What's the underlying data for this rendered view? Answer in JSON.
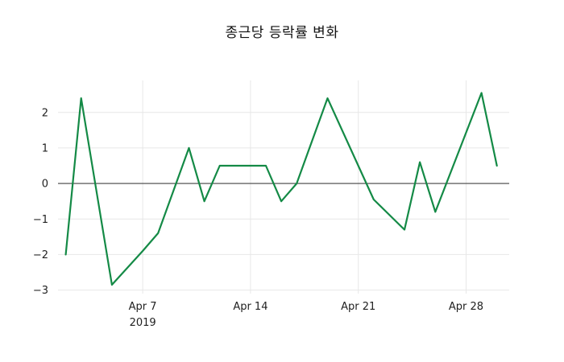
{
  "chart_data": {
    "type": "line",
    "title": "종근당 등락률 변화",
    "xlabel": "",
    "ylabel": "",
    "legend_position": "none",
    "grid": true,
    "zero_line": true,
    "colors": {
      "line": "#148a46",
      "grid": "#e7e7e7",
      "zero_line": "#444444",
      "tick_label": "#212121",
      "title": "#111111",
      "background": "#ffffff"
    },
    "xlim": [
      -0.5,
      28.8
    ],
    "ylim": [
      -3.1,
      2.9
    ],
    "y_ticks": [
      2,
      1,
      0,
      -1,
      -2,
      -3
    ],
    "x_ticks": [
      {
        "day": 5,
        "label": "Apr 7",
        "sublabel": "2019"
      },
      {
        "day": 12,
        "label": "Apr 14",
        "sublabel": ""
      },
      {
        "day": 19,
        "label": "Apr 21",
        "sublabel": ""
      },
      {
        "day": 26,
        "label": "Apr 28",
        "sublabel": ""
      }
    ],
    "series": [
      {
        "name": "등락률",
        "color": "#148a46",
        "points": [
          {
            "date": "Apr 2",
            "day": 0,
            "value": -2.0
          },
          {
            "date": "Apr 3",
            "day": 1,
            "value": 2.4
          },
          {
            "date": "Apr 5",
            "day": 3,
            "value": -2.85
          },
          {
            "date": "Apr 7",
            "day": 5,
            "value": -1.9
          },
          {
            "date": "Apr 8",
            "day": 6,
            "value": -1.4
          },
          {
            "date": "Apr 10",
            "day": 8,
            "value": 1.0
          },
          {
            "date": "Apr 11",
            "day": 9,
            "value": -0.5
          },
          {
            "date": "Apr 12",
            "day": 10,
            "value": 0.5
          },
          {
            "date": "Apr 15",
            "day": 13,
            "value": 0.5
          },
          {
            "date": "Apr 16",
            "day": 14,
            "value": -0.5
          },
          {
            "date": "Apr 17",
            "day": 15,
            "value": 0.0
          },
          {
            "date": "Apr 19",
            "day": 17,
            "value": 2.4
          },
          {
            "date": "Apr 22",
            "day": 20,
            "value": -0.45
          },
          {
            "date": "Apr 24",
            "day": 22,
            "value": -1.3
          },
          {
            "date": "Apr 25",
            "day": 23,
            "value": 0.6
          },
          {
            "date": "Apr 26",
            "day": 24,
            "value": -0.8
          },
          {
            "date": "Apr 29",
            "day": 27,
            "value": 2.55
          },
          {
            "date": "Apr 30",
            "day": 28,
            "value": 0.5
          }
        ]
      }
    ]
  }
}
